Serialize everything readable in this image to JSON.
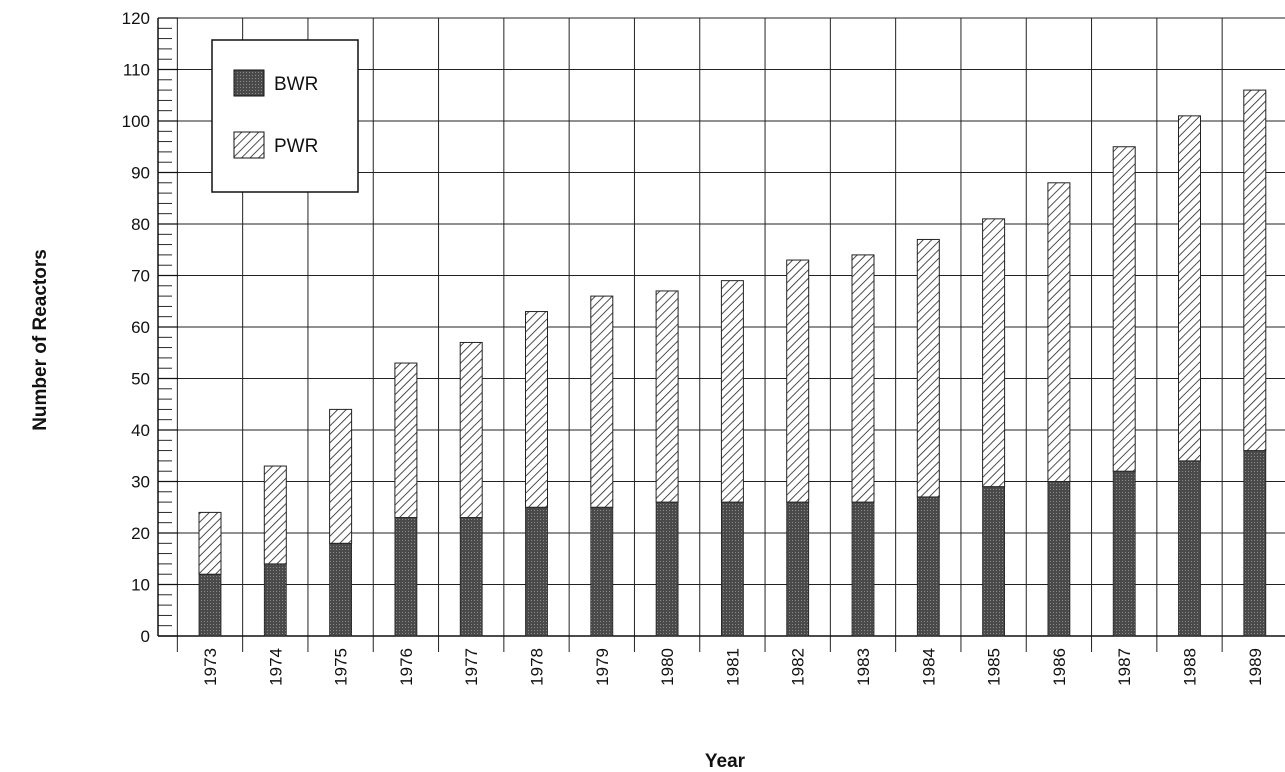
{
  "chart_data": {
    "type": "bar",
    "stacked": true,
    "title": "",
    "xlabel": "Year",
    "ylabel": "Number of Reactors",
    "ylim": [
      0,
      120
    ],
    "yticks": [
      "0",
      "10",
      "20",
      "30",
      "40",
      "50",
      "60",
      "70",
      "80",
      "90",
      "100",
      "110",
      "120"
    ],
    "categories": [
      "1973",
      "1974",
      "1975",
      "1976",
      "1977",
      "1978",
      "1979",
      "1980",
      "1981",
      "1982",
      "1983",
      "1984",
      "1985",
      "1986",
      "1987",
      "1988",
      "1989"
    ],
    "series": [
      {
        "name": "BWR",
        "pattern": "solid-dark",
        "color": "#555555",
        "values": [
          12,
          14,
          18,
          23,
          23,
          25,
          25,
          26,
          26,
          26,
          26,
          27,
          29,
          30,
          32,
          34,
          36
        ]
      },
      {
        "name": "PWR",
        "pattern": "diagonal-hatch",
        "color": "#ffffff",
        "values": [
          12,
          19,
          26,
          30,
          34,
          38,
          41,
          41,
          43,
          47,
          48,
          50,
          52,
          58,
          63,
          67,
          70
        ]
      }
    ],
    "grid": true,
    "legend": "top-left"
  }
}
